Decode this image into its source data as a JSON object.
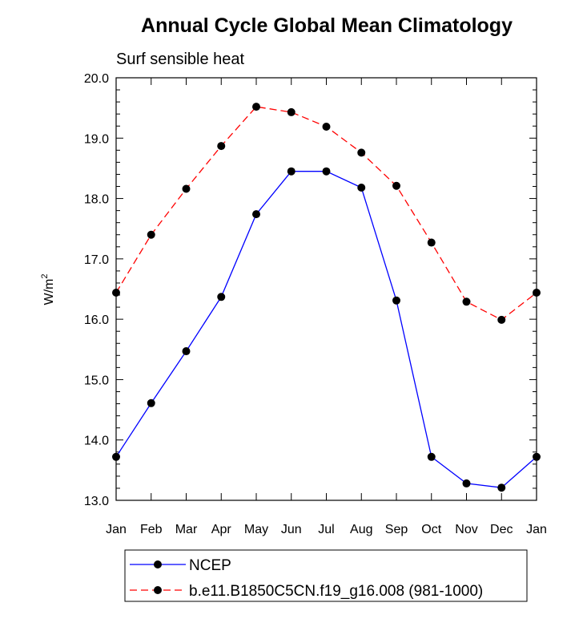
{
  "chart_data": {
    "type": "line",
    "title": "Annual Cycle Global Mean Climatology",
    "subtitle": "Surf sensible heat",
    "ylabel_base": "W/m",
    "ylabel_sup": "2",
    "categories": [
      "Jan",
      "Feb",
      "Mar",
      "Apr",
      "May",
      "Jun",
      "Jul",
      "Aug",
      "Sep",
      "Oct",
      "Nov",
      "Dec",
      "Jan"
    ],
    "ylim": [
      13.0,
      20.0
    ],
    "yticks": [
      "13.0",
      "14.0",
      "15.0",
      "16.0",
      "17.0",
      "18.0",
      "19.0",
      "20.0"
    ],
    "grid": false,
    "legend_placement": "bottom",
    "series": [
      {
        "name": "NCEP",
        "color": "#0000ff",
        "linestyle": "solid",
        "values": [
          13.72,
          14.61,
          15.47,
          16.37,
          17.74,
          18.45,
          18.45,
          18.18,
          16.31,
          13.72,
          13.28,
          13.21,
          13.72
        ]
      },
      {
        "name": "b.e11.B1850C5CN.f19_g16.008 (981-1000)",
        "color": "#ff0000",
        "linestyle": "dashed",
        "values": [
          16.44,
          17.4,
          18.16,
          18.87,
          19.52,
          19.43,
          19.19,
          18.76,
          18.21,
          17.27,
          16.29,
          15.99,
          16.44
        ]
      }
    ]
  }
}
